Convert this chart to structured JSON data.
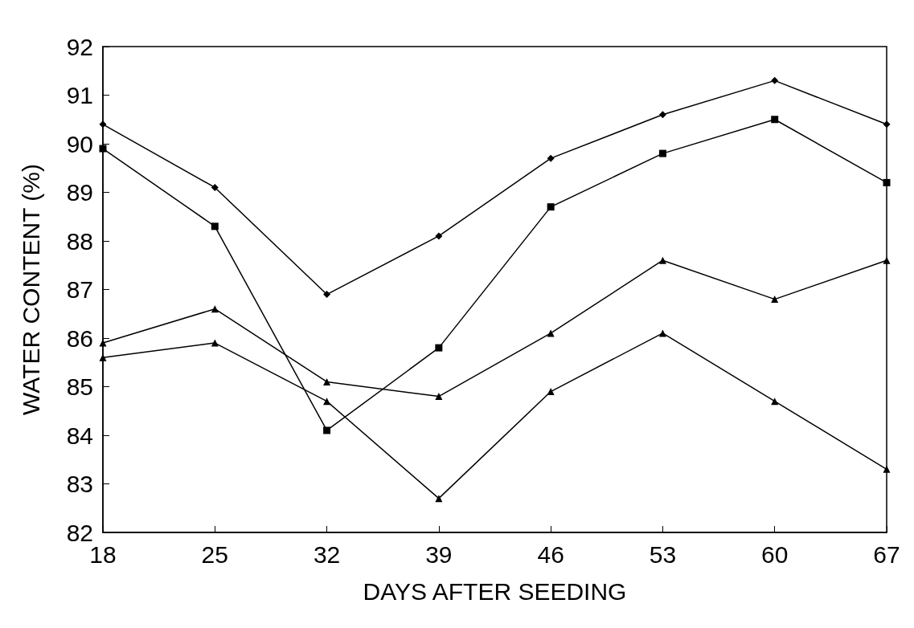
{
  "chart_data": {
    "type": "line",
    "xlabel": "DAYS AFTER SEEDING",
    "ylabel": "WATER CONTENT (%)",
    "x": [
      18,
      25,
      32,
      39,
      46,
      53,
      60,
      67
    ],
    "series": [
      {
        "color": "#000000",
        "marker": "diamond",
        "values": [
          90.4,
          89.1,
          86.9,
          88.1,
          89.7,
          90.6,
          91.3,
          90.4
        ]
      },
      {
        "color": "#000000",
        "marker": "square",
        "values": [
          89.9,
          88.3,
          84.1,
          85.8,
          88.7,
          89.8,
          90.5,
          89.2
        ]
      },
      {
        "color": "#000000",
        "marker": "triangle",
        "values": [
          85.9,
          86.6,
          85.1,
          84.8,
          86.1,
          87.6,
          86.8,
          87.6
        ]
      },
      {
        "color": "#000000",
        "marker": "triangle",
        "values": [
          85.6,
          85.9,
          84.7,
          82.7,
          84.9,
          86.1,
          84.7,
          83.3
        ]
      }
    ],
    "xlim": [
      18,
      67
    ],
    "xticks": [
      18,
      25,
      32,
      39,
      46,
      53,
      60,
      67
    ],
    "ylim": [
      82,
      92
    ],
    "yticks": [
      82,
      83,
      84,
      85,
      86,
      87,
      88,
      89,
      90,
      91,
      92
    ],
    "grid": false,
    "line_style": "solid"
  }
}
